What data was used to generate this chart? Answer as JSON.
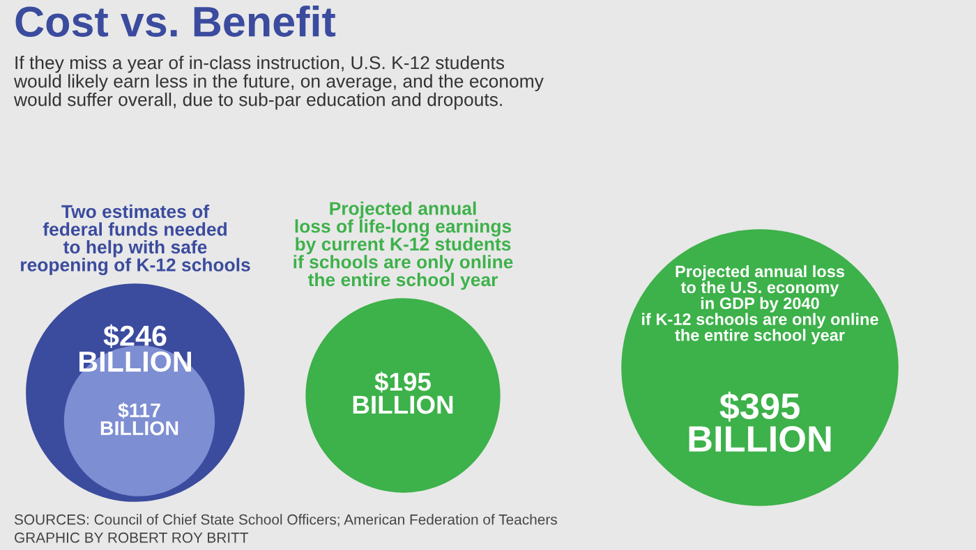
{
  "chart_data": {
    "type": "other",
    "title": "Cost vs. Benefit",
    "subtitle": "If they miss a year of in-class instruction, U.S. K-12 students\nwould likely earn less in the future, on average, and the economy\nwould suffer overall, due to sub-par education and dropouts.",
    "categories": [
      "Two estimates of\nfederal funds needed\nto help with safe\nreopening of K-12 schools",
      "Projected annual\nloss of life-long earnings\nby current K-12 students\nif schools are only online\nthe entire school year",
      "Projected annual loss\nto the U.S. economy\nin GDP by 2040\nif K-12 schools are only online\nthe entire school year"
    ],
    "series": [
      {
        "color": "#7e8ed2",
        "values": [
          117,
          null,
          null
        ],
        "value_labels": [
          "$117\nBILLION",
          null,
          null
        ]
      },
      {
        "colors": [
          "#3b4b9e",
          "#3db14a",
          "#3db14a"
        ],
        "values": [
          246,
          195,
          395
        ],
        "value_labels": [
          "$246\nBILLION",
          "$195\nBILLION",
          "$395\nBILLION"
        ]
      }
    ],
    "annotations": [
      "SOURCES: Council of Chief State School Officers; American Federation of Teachers",
      "GRAPHIC BY ROBERT ROY BRITT"
    ]
  }
}
